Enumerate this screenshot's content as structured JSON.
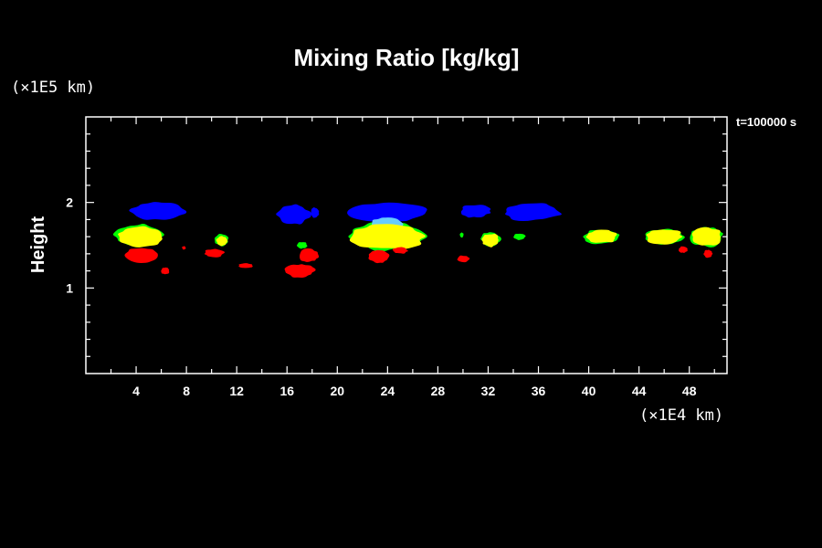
{
  "chart_data": {
    "type": "contour",
    "title": "Mixing Ratio [kg/kg]",
    "xunit": "(×1E4 km)",
    "yunit": "(×1E5 km)",
    "ylabel": "Height",
    "time_label": "t=100000 s",
    "xlim": [
      0,
      51
    ],
    "ylim": [
      0,
      3
    ],
    "xticks": [
      4,
      8,
      12,
      16,
      20,
      24,
      28,
      32,
      36,
      40,
      44,
      48
    ],
    "yticks": [
      1,
      2
    ],
    "x_minor_step": 2,
    "y_minor_step": 0.2,
    "colors": {
      "blue": "#0000ff",
      "cyan": "#66ccff",
      "green": "#00ff00",
      "yellow": "#ffff00",
      "red": "#ff0000"
    },
    "regions": [
      {
        "color": "blue",
        "cx": 5.8,
        "cy": 1.9,
        "rx": 2.3,
        "ry": 0.11
      },
      {
        "color": "blue",
        "cx": 16.5,
        "cy": 1.86,
        "rx": 1.3,
        "ry": 0.12
      },
      {
        "color": "blue",
        "cx": 18.2,
        "cy": 1.88,
        "rx": 0.35,
        "ry": 0.06
      },
      {
        "color": "blue",
        "cx": 24.1,
        "cy": 1.89,
        "rx": 3.1,
        "ry": 0.12
      },
      {
        "color": "blue",
        "cx": 31.0,
        "cy": 1.9,
        "rx": 1.2,
        "ry": 0.08
      },
      {
        "color": "blue",
        "cx": 35.5,
        "cy": 1.89,
        "rx": 2.4,
        "ry": 0.11
      },
      {
        "color": "cyan",
        "cx": 24.0,
        "cy": 1.74,
        "rx": 1.3,
        "ry": 0.1
      },
      {
        "color": "green",
        "cx": 4.3,
        "cy": 1.62,
        "rx": 2.0,
        "ry": 0.13
      },
      {
        "color": "green",
        "cx": 10.8,
        "cy": 1.56,
        "rx": 0.55,
        "ry": 0.07
      },
      {
        "color": "green",
        "cx": 17.2,
        "cy": 1.5,
        "rx": 0.4,
        "ry": 0.04
      },
      {
        "color": "green",
        "cx": 24.0,
        "cy": 1.6,
        "rx": 3.2,
        "ry": 0.17
      },
      {
        "color": "green",
        "cx": 32.2,
        "cy": 1.57,
        "rx": 0.8,
        "ry": 0.09
      },
      {
        "color": "green",
        "cx": 34.5,
        "cy": 1.6,
        "rx": 0.45,
        "ry": 0.04
      },
      {
        "color": "green",
        "cx": 29.9,
        "cy": 1.62,
        "rx": 0.15,
        "ry": 0.03
      },
      {
        "color": "green",
        "cx": 41.0,
        "cy": 1.6,
        "rx": 1.4,
        "ry": 0.09
      },
      {
        "color": "green",
        "cx": 46.0,
        "cy": 1.6,
        "rx": 1.6,
        "ry": 0.1
      },
      {
        "color": "green",
        "cx": 49.4,
        "cy": 1.6,
        "rx": 1.3,
        "ry": 0.12
      },
      {
        "color": "yellow",
        "cx": 4.4,
        "cy": 1.6,
        "rx": 1.9,
        "ry": 0.12
      },
      {
        "color": "yellow",
        "cx": 10.8,
        "cy": 1.55,
        "rx": 0.45,
        "ry": 0.06
      },
      {
        "color": "yellow",
        "cx": 24.0,
        "cy": 1.6,
        "rx": 3.0,
        "ry": 0.15
      },
      {
        "color": "yellow",
        "cx": 32.2,
        "cy": 1.56,
        "rx": 0.7,
        "ry": 0.08
      },
      {
        "color": "yellow",
        "cx": 41.0,
        "cy": 1.6,
        "rx": 1.3,
        "ry": 0.08
      },
      {
        "color": "yellow",
        "cx": 46.0,
        "cy": 1.6,
        "rx": 1.5,
        "ry": 0.09
      },
      {
        "color": "yellow",
        "cx": 49.4,
        "cy": 1.6,
        "rx": 1.2,
        "ry": 0.11
      },
      {
        "color": "red",
        "cx": 4.4,
        "cy": 1.38,
        "rx": 1.4,
        "ry": 0.1
      },
      {
        "color": "red",
        "cx": 6.3,
        "cy": 1.2,
        "rx": 0.35,
        "ry": 0.04
      },
      {
        "color": "red",
        "cx": 7.8,
        "cy": 1.47,
        "rx": 0.15,
        "ry": 0.02
      },
      {
        "color": "red",
        "cx": 10.2,
        "cy": 1.41,
        "rx": 0.8,
        "ry": 0.05
      },
      {
        "color": "red",
        "cx": 12.7,
        "cy": 1.26,
        "rx": 0.6,
        "ry": 0.03
      },
      {
        "color": "red",
        "cx": 17.0,
        "cy": 1.2,
        "rx": 1.2,
        "ry": 0.08
      },
      {
        "color": "red",
        "cx": 17.7,
        "cy": 1.38,
        "rx": 0.8,
        "ry": 0.08
      },
      {
        "color": "red",
        "cx": 23.3,
        "cy": 1.37,
        "rx": 0.8,
        "ry": 0.08
      },
      {
        "color": "red",
        "cx": 25.0,
        "cy": 1.44,
        "rx": 0.6,
        "ry": 0.04
      },
      {
        "color": "red",
        "cx": 30.0,
        "cy": 1.34,
        "rx": 0.5,
        "ry": 0.04
      },
      {
        "color": "red",
        "cx": 47.5,
        "cy": 1.45,
        "rx": 0.35,
        "ry": 0.04
      },
      {
        "color": "red",
        "cx": 49.5,
        "cy": 1.4,
        "rx": 0.35,
        "ry": 0.05
      }
    ]
  }
}
